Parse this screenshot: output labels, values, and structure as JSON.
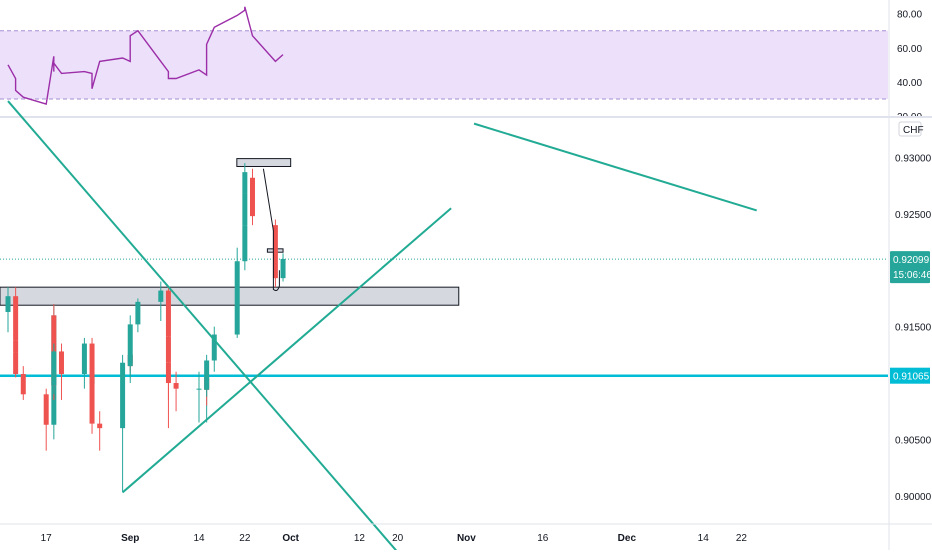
{
  "chart_data": [
    {
      "type": "line",
      "title": "",
      "ylabel": "",
      "ylim": [
        20,
        88
      ],
      "yticks": [
        "80.00",
        "60.00",
        "40.00",
        "20.00"
      ],
      "band": [
        30,
        70
      ],
      "band_color": "#ece0fb",
      "line_color": "#9c2ea8",
      "series": [
        {
          "name": "",
          "values": [
            {
              "x": "Aug 10",
              "y": 50
            },
            {
              "x": "Aug 11",
              "y": 42
            },
            {
              "x": "Aug 12",
              "y": 37
            },
            {
              "x": "Aug 13",
              "y": 35
            },
            {
              "x": "Aug 14",
              "y": 31
            },
            {
              "x": "Aug 17",
              "y": 27
            },
            {
              "x": "Aug 18",
              "y": 55
            },
            {
              "x": "Aug 19",
              "y": 46
            },
            {
              "x": "Aug 20",
              "y": 51
            },
            {
              "x": "Aug 21",
              "y": 45
            },
            {
              "x": "Aug 24",
              "y": 46
            },
            {
              "x": "Aug 25",
              "y": 45
            },
            {
              "x": "Aug 26",
              "y": 36
            },
            {
              "x": "Aug 27",
              "y": 36
            },
            {
              "x": "Aug 28",
              "y": 52
            },
            {
              "x": "Aug 31",
              "y": 54
            },
            {
              "x": "Sep 1",
              "y": 52
            },
            {
              "x": "Sep 2",
              "y": 62
            },
            {
              "x": "Sep 3",
              "y": 67
            },
            {
              "x": "Sep 4",
              "y": 70
            },
            {
              "x": "Sep 7",
              "y": 52
            },
            {
              "x": "Sep 8",
              "y": 46
            },
            {
              "x": "Sep 9",
              "y": 43
            },
            {
              "x": "Sep 10",
              "y": 42
            },
            {
              "x": "Sep 11",
              "y": 42
            },
            {
              "x": "Sep 14",
              "y": 47
            },
            {
              "x": "Sep 15",
              "y": 44
            },
            {
              "x": "Sep 16",
              "y": 55
            },
            {
              "x": "Sep 17",
              "y": 62
            },
            {
              "x": "Sep 18",
              "y": 72
            },
            {
              "x": "Sep 21",
              "y": 79
            },
            {
              "x": "Sep 22",
              "y": 82
            },
            {
              "x": "Sep 23",
              "y": 84
            },
            {
              "x": "Sep 24",
              "y": 84
            },
            {
              "x": "Sep 25",
              "y": 67
            },
            {
              "x": "Sep 28",
              "y": 52
            },
            {
              "x": "Sep 29",
              "y": 56
            }
          ]
        }
      ]
    },
    {
      "type": "candlestick",
      "title": "",
      "currency": "CHF",
      "ylim": [
        0.8975,
        0.9335
      ],
      "yticks": [
        "0.93000",
        "0.92500",
        "0.91500",
        "0.90500",
        "0.90000"
      ],
      "current_price": "0.92099",
      "countdown": "15:06:46",
      "level_label": "0.91065",
      "x_tick_labels": [
        "17",
        "Sep",
        "14",
        "22",
        "Oct",
        "12",
        "20",
        "Nov",
        "16",
        "Dec",
        "14",
        "22"
      ],
      "up_color": "#26a69a",
      "down_color": "#ef5350",
      "candles": [
        {
          "d": "Aug 10",
          "o": 0.9163,
          "h": 0.9185,
          "l": 0.9145,
          "c": 0.9177
        },
        {
          "d": "Aug 11",
          "o": 0.9177,
          "h": 0.9185,
          "l": 0.913,
          "c": 0.9138
        },
        {
          "d": "Aug 12",
          "o": 0.9138,
          "h": 0.9145,
          "l": 0.9108,
          "c": 0.9127
        },
        {
          "d": "Aug 13",
          "o": 0.9127,
          "h": 0.914,
          "l": 0.9105,
          "c": 0.9108
        },
        {
          "d": "Aug 14",
          "o": 0.9108,
          "h": 0.9115,
          "l": 0.9085,
          "c": 0.909
        },
        {
          "d": "Aug 17",
          "o": 0.909,
          "h": 0.9095,
          "l": 0.904,
          "c": 0.9063
        },
        {
          "d": "Aug 18",
          "o": 0.9063,
          "h": 0.917,
          "l": 0.905,
          "c": 0.916
        },
        {
          "d": "Aug 19",
          "o": 0.916,
          "h": 0.917,
          "l": 0.9085,
          "c": 0.9098
        },
        {
          "d": "Aug 20",
          "o": 0.9098,
          "h": 0.9135,
          "l": 0.909,
          "c": 0.9128
        },
        {
          "d": "Aug 21",
          "o": 0.9128,
          "h": 0.9135,
          "l": 0.9085,
          "c": 0.9108
        },
        {
          "d": "Aug 24",
          "o": 0.9108,
          "h": 0.914,
          "l": 0.9095,
          "c": 0.9135
        },
        {
          "d": "Aug 25",
          "o": 0.9135,
          "h": 0.914,
          "l": 0.9093,
          "c": 0.9099
        },
        {
          "d": "Aug 26",
          "o": 0.9099,
          "h": 0.911,
          "l": 0.909,
          "c": 0.9105
        },
        {
          "d": "Aug 27",
          "o": 0.9105,
          "h": 0.912,
          "l": 0.9055,
          "c": 0.9064
        },
        {
          "d": "Aug 28",
          "o": 0.9064,
          "h": 0.9075,
          "l": 0.904,
          "c": 0.906
        },
        {
          "d": "Aug 31",
          "o": 0.906,
          "h": 0.9125,
          "l": 0.9003,
          "c": 0.9118
        },
        {
          "d": "Sep 1",
          "o": 0.9118,
          "h": 0.913,
          "l": 0.91,
          "c": 0.9125
        },
        {
          "d": "Sep 2",
          "o": 0.9125,
          "h": 0.9135,
          "l": 0.911,
          "c": 0.9115
        },
        {
          "d": "Sep 3",
          "o": 0.9115,
          "h": 0.916,
          "l": 0.9105,
          "c": 0.9152
        },
        {
          "d": "Sep 4",
          "o": 0.9152,
          "h": 0.9175,
          "l": 0.9145,
          "c": 0.9172
        },
        {
          "d": "Sep 7",
          "o": 0.9172,
          "h": 0.919,
          "l": 0.9155,
          "c": 0.9182
        },
        {
          "d": "Sep 8",
          "o": 0.9182,
          "h": 0.9185,
          "l": 0.9135,
          "c": 0.9141
        },
        {
          "d": "Sep 9",
          "o": 0.9141,
          "h": 0.915,
          "l": 0.906,
          "c": 0.9118
        },
        {
          "d": "Sep 10",
          "o": 0.9118,
          "h": 0.913,
          "l": 0.9085,
          "c": 0.91
        },
        {
          "d": "Sep 11",
          "o": 0.91,
          "h": 0.911,
          "l": 0.9075,
          "c": 0.9095
        },
        {
          "d": "Sep 14",
          "o": 0.9095,
          "h": 0.911,
          "l": 0.9065,
          "c": 0.9095
        },
        {
          "d": "Sep 15",
          "o": 0.9095,
          "h": 0.911,
          "l": 0.9065,
          "c": 0.9105
        },
        {
          "d": "Sep 16",
          "o": 0.9105,
          "h": 0.9115,
          "l": 0.908,
          "c": 0.9094
        },
        {
          "d": "Sep 17",
          "o": 0.9094,
          "h": 0.9125,
          "l": 0.9088,
          "c": 0.912
        },
        {
          "d": "Sep 18",
          "o": 0.912,
          "h": 0.915,
          "l": 0.911,
          "c": 0.9143
        },
        {
          "d": "Sep 21",
          "o": 0.9143,
          "h": 0.922,
          "l": 0.914,
          "c": 0.9208
        },
        {
          "d": "Sep 22",
          "o": 0.9208,
          "h": 0.9245,
          "l": 0.92,
          "c": 0.924
        },
        {
          "d": "Sep 23",
          "o": 0.924,
          "h": 0.9275,
          "l": 0.923,
          "c": 0.9268
        },
        {
          "d": "Sep 24",
          "o": 0.9268,
          "h": 0.9295,
          "l": 0.9255,
          "c": 0.9287
        },
        {
          "d": "Sep 25",
          "o": 0.9282,
          "h": 0.929,
          "l": 0.924,
          "c": 0.9248
        },
        {
          "d": "Sep 28",
          "o": 0.924,
          "h": 0.9245,
          "l": 0.9185,
          "c": 0.9193
        },
        {
          "d": "Sep 29",
          "o": 0.9193,
          "h": 0.9215,
          "l": 0.919,
          "c": 0.921
        }
      ],
      "horizontal_level": {
        "price": 0.91065,
        "color": "#00bcd4"
      },
      "current_price_color": "#26a69a",
      "trend_color": "#22ab94",
      "trend_lines": [
        {
          "from": {
            "d": "Aug 10",
            "p": 0.935
          },
          "to": {
            "d": "Oct 19",
            "p": 0.895
          }
        },
        {
          "from": {
            "d": "Aug 31",
            "p": 0.9003
          },
          "to": {
            "d": "Oct 30",
            "p": 0.9255
          }
        },
        {
          "from": {
            "d": "Nov 5",
            "p": 0.933
          },
          "to": {
            "d": "Dec 25",
            "p": 0.9253
          }
        }
      ],
      "zones": [
        {
          "from": "Aug 10",
          "to": "Oct 31",
          "top": 0.9185,
          "bottom": 0.9169,
          "fill": "#d1d4dc",
          "stroke": "#131722"
        },
        {
          "from": "Sep 24",
          "to": "Oct 1",
          "top": 0.9299,
          "bottom": 0.9292,
          "fill": "#d1d4dc",
          "stroke": "#131722"
        },
        {
          "from": "Sep 28",
          "to": "Sep 30",
          "top": 0.9219,
          "bottom": 0.9216,
          "fill": "#d1d4dc",
          "stroke": "#131722"
        }
      ]
    }
  ]
}
